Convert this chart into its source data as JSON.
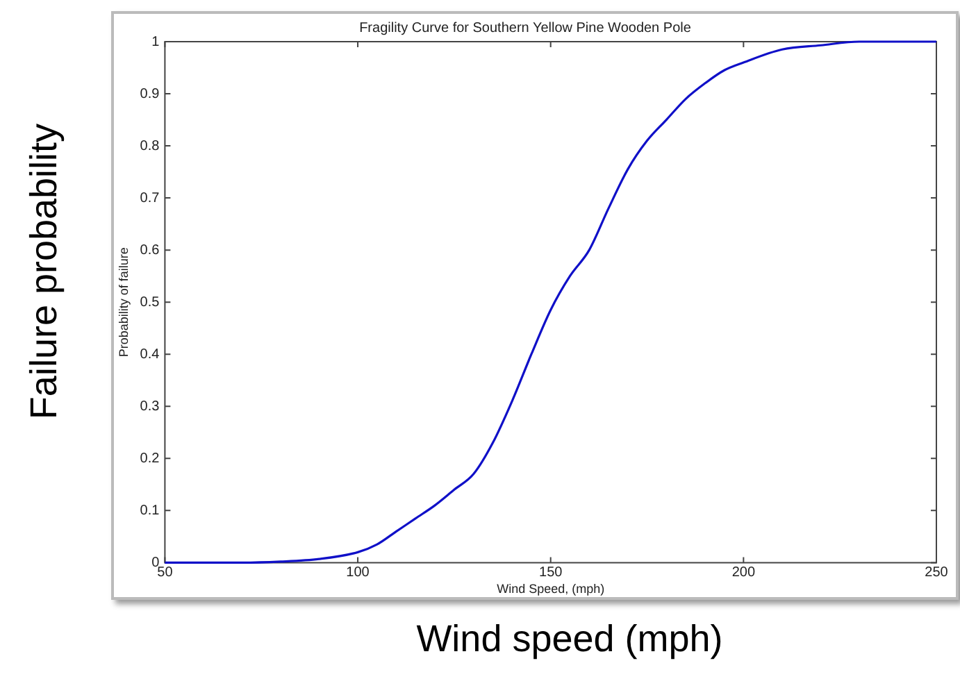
{
  "chart_data": {
    "type": "line",
    "title": "Fragility Curve for Southern Yellow Pine Wooden Pole",
    "xlabel": "Wind Speed, (mph)",
    "ylabel": "Probability of failure",
    "annotations": [
      "Failure probability",
      "Wind speed (mph)"
    ],
    "x": [
      50,
      60,
      70,
      80,
      90,
      100,
      105,
      110,
      115,
      120,
      125,
      130,
      135,
      140,
      145,
      150,
      155,
      160,
      165,
      170,
      175,
      180,
      185,
      190,
      195,
      200,
      210,
      220,
      230,
      240,
      250
    ],
    "series": [
      {
        "color": "#1010c8",
        "values": [
          0,
          0,
          0,
          0.002,
          0.007,
          0.02,
          0.035,
          0.06,
          0.085,
          0.11,
          0.14,
          0.17,
          0.23,
          0.31,
          0.4,
          0.485,
          0.55,
          0.6,
          0.68,
          0.755,
          0.81,
          0.85,
          0.89,
          0.92,
          0.945,
          0.96,
          0.985,
          0.993,
          1,
          1,
          1
        ]
      }
    ],
    "xlim": [
      50,
      250
    ],
    "xticks": [
      50,
      100,
      150,
      200,
      250
    ],
    "ylim": [
      0,
      1
    ],
    "yticks": [
      0,
      0.1,
      0.2,
      0.3,
      0.4,
      0.5,
      0.6,
      0.7,
      0.8,
      0.9,
      1
    ],
    "grid": false,
    "legend": false,
    "marker": "none",
    "line_style": "solid"
  }
}
